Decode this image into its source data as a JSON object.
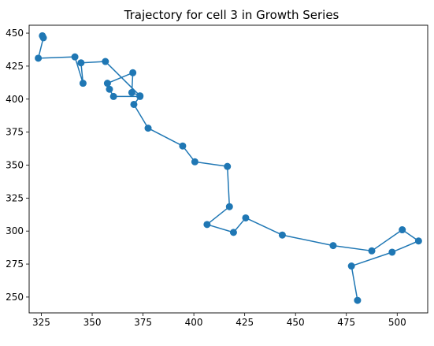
{
  "chart_data": {
    "type": "line",
    "title": "Trajectory for cell 3 in Growth Series",
    "xlabel": "",
    "ylabel": "",
    "xlim": [
      319,
      515
    ],
    "ylim": [
      238,
      456
    ],
    "xticks": [
      325,
      350,
      375,
      400,
      425,
      450,
      475,
      500
    ],
    "yticks": [
      250,
      275,
      300,
      325,
      350,
      375,
      400,
      425,
      450
    ],
    "grid": false,
    "legend": "none",
    "line_color": "#1f77b4",
    "marker": "circle",
    "series": [
      {
        "x": [
          480.5,
          477.5,
          497.5,
          510.5,
          502.5,
          487.5,
          468.5,
          443.5,
          425.5,
          419.5,
          406.5,
          417.5,
          416.5,
          400.5,
          394.5,
          377.5,
          370.5,
          373.5,
          360.5,
          358.5,
          357.5,
          370.0,
          369.5,
          373.5,
          356.5,
          344.5,
          345.5,
          341.5,
          323.5,
          326.0,
          325.5
        ],
        "y": [
          247.5,
          273.5,
          284.0,
          292.5,
          301.0,
          285.0,
          289.0,
          297.0,
          310.0,
          299.0,
          305.0,
          318.5,
          349.0,
          352.5,
          364.5,
          378.0,
          396.0,
          402.0,
          402.0,
          407.5,
          412.0,
          420.0,
          405.0,
          402.5,
          428.5,
          427.5,
          412.0,
          432.0,
          431.0,
          446.5,
          448.0
        ]
      }
    ]
  }
}
